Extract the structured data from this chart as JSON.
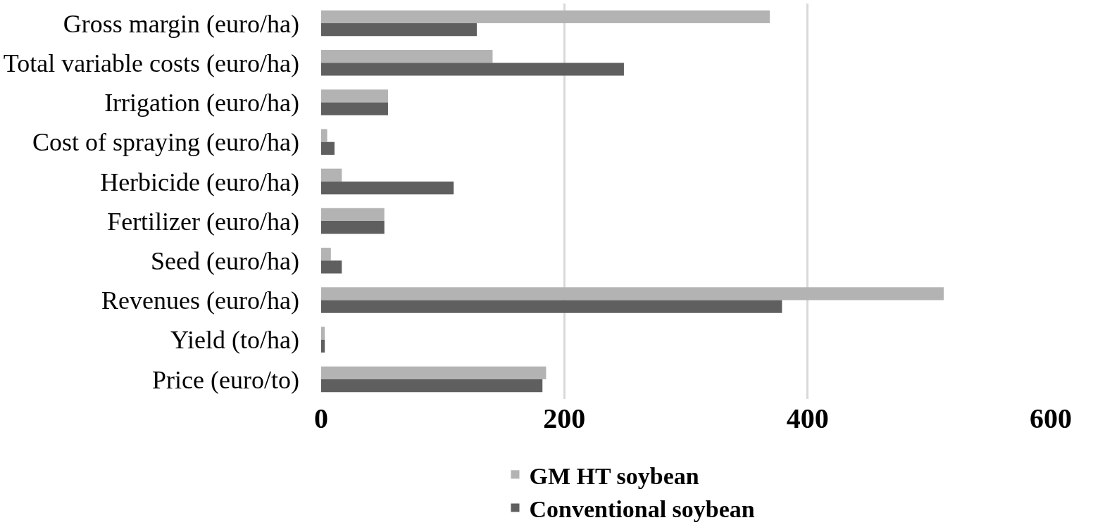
{
  "chart_data": {
    "type": "bar",
    "orientation": "horizontal",
    "categories": [
      "Gross margin (euro/ha)",
      "Total variable costs (euro/ha)",
      "Irrigation (euro/ha)",
      "Cost of spraying (euro/ha)",
      "Herbicide (euro/ha)",
      "Fertilizer (euro/ha)",
      "Seed (euro/ha)",
      "Revenues (euro/ha)",
      "Yield (to/ha)",
      "Price (euro/to)"
    ],
    "series": [
      {
        "name": "GM HT soybean",
        "color": "#b3b3b3",
        "values": [
          369,
          141,
          55,
          5,
          17,
          52,
          8,
          512,
          3,
          185
        ]
      },
      {
        "name": "Conventional soybean",
        "color": "#5f5f5f",
        "values": [
          128,
          249,
          55,
          11,
          109,
          52,
          17,
          379,
          3,
          182
        ]
      }
    ],
    "xlim": [
      0,
      600
    ],
    "xticks": [
      0,
      200,
      400,
      600
    ],
    "grid": "x",
    "legend": "bottom"
  }
}
